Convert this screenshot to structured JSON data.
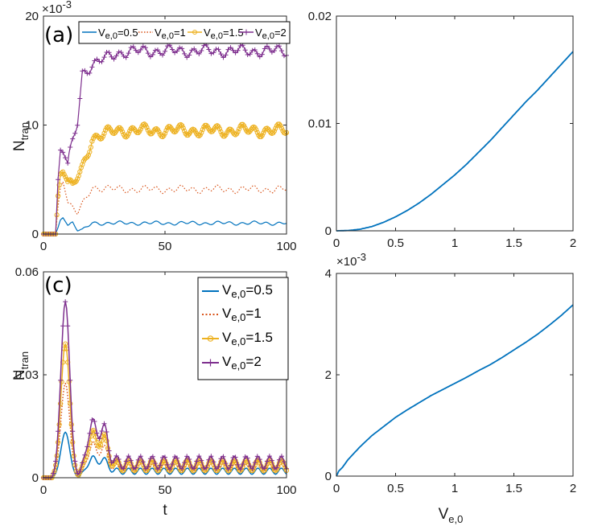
{
  "figure": {
    "ylabel_main": "N",
    "ylabel_sub": "tran",
    "xlabel_t": "t",
    "xlabel_v_main": "V",
    "xlabel_v_sub": "e,0",
    "exponent_label": "×10",
    "exponent_power": "-3"
  },
  "legend": [
    {
      "prefix": "V",
      "sub": "e,0",
      "suffix": "=0.5",
      "color": "#0072BD",
      "style": "solid"
    },
    {
      "prefix": "V",
      "sub": "e,0",
      "suffix": "=1",
      "color": "#D95319",
      "style": "dotted"
    },
    {
      "prefix": "V",
      "sub": "e,0",
      "suffix": "=1.5",
      "color": "#EDB120",
      "style": "circle"
    },
    {
      "prefix": "V",
      "sub": "e,0",
      "suffix": "=2",
      "color": "#7E2F8E",
      "style": "plus"
    }
  ],
  "chart_data": [
    {
      "id": "a",
      "panel_label": "(a)",
      "type": "line",
      "xlim": [
        0,
        100
      ],
      "ylim": [
        0,
        20
      ],
      "xticks": [
        0,
        50,
        100
      ],
      "yticks": [
        0,
        10,
        20
      ],
      "xtick_labels": [
        "0",
        "50",
        "100"
      ],
      "ytick_labels": [
        "0",
        "10",
        "20"
      ],
      "y_scale_exponent": "×10^-3",
      "xlabel": "",
      "ylabel": "N_tran",
      "series": [
        {
          "name": "V_e,0=0.5",
          "x": [
            0,
            5,
            6,
            7,
            8,
            10,
            12,
            14,
            16,
            20,
            30,
            40,
            50,
            60,
            70,
            80,
            90,
            100
          ],
          "values": [
            0,
            0,
            0.6,
            1.3,
            1.5,
            0.8,
            1.1,
            0.4,
            0.3,
            1.0,
            1.0,
            1.0,
            1.0,
            1.0,
            1.0,
            1.0,
            1.0,
            1.0
          ],
          "amp": 0.2
        },
        {
          "name": "V_e,0=1",
          "x": [
            0,
            5,
            6,
            7,
            8,
            10,
            12,
            14,
            16,
            20,
            30,
            40,
            50,
            60,
            70,
            80,
            90,
            100
          ],
          "values": [
            0,
            0,
            2.5,
            4.3,
            4.8,
            2.9,
            2.4,
            1.9,
            2.6,
            4.3,
            4.1,
            4.1,
            4.1,
            4.1,
            4.1,
            4.1,
            4.1,
            4.1
          ],
          "amp": 0.4
        },
        {
          "name": "V_e,0=1.5",
          "x": [
            0,
            5,
            6,
            7,
            8,
            10,
            12,
            14,
            16,
            20,
            30,
            40,
            50,
            60,
            70,
            80,
            90,
            100
          ],
          "values": [
            0,
            0,
            3.5,
            5.5,
            5.7,
            4.8,
            4.2,
            5.2,
            6.0,
            8.8,
            9.5,
            9.5,
            9.5,
            9.5,
            9.5,
            9.5,
            9.5,
            9.5
          ],
          "amp": 0.6
        },
        {
          "name": "V_e,0=2",
          "x": [
            0,
            5,
            6,
            7,
            8,
            10,
            12,
            14,
            16,
            20,
            30,
            40,
            50,
            60,
            70,
            80,
            90,
            100
          ],
          "values": [
            0,
            0,
            5.0,
            7.7,
            7.5,
            6.5,
            8.3,
            10.3,
            14.8,
            15.5,
            16.6,
            16.8,
            16.8,
            16.8,
            16.8,
            16.8,
            16.8,
            16.8
          ],
          "amp": 0.6
        }
      ]
    },
    {
      "id": "b",
      "panel_label": "",
      "type": "line",
      "xlim": [
        0,
        2
      ],
      "ylim": [
        0,
        0.02
      ],
      "xticks": [
        0,
        0.5,
        1,
        1.5,
        2
      ],
      "yticks": [
        0,
        0.01,
        0.02
      ],
      "xtick_labels": [
        "0",
        "0.5",
        "1",
        "1.5",
        "2"
      ],
      "ytick_labels": [
        "0",
        "0.01",
        "0.02"
      ],
      "xlabel": "",
      "ylabel": "",
      "series": [
        {
          "name": "",
          "x": [
            0,
            0.1,
            0.2,
            0.3,
            0.4,
            0.5,
            0.6,
            0.7,
            0.8,
            0.9,
            1.0,
            1.1,
            1.2,
            1.3,
            1.4,
            1.5,
            1.6,
            1.7,
            1.8,
            1.9,
            2.0
          ],
          "values": [
            0,
            3e-05,
            0.00015,
            0.0004,
            0.0008,
            0.0013,
            0.0019,
            0.0026,
            0.0034,
            0.0043,
            0.0052,
            0.0062,
            0.0073,
            0.0084,
            0.0096,
            0.0108,
            0.012,
            0.0131,
            0.0143,
            0.0155,
            0.0167
          ]
        }
      ]
    },
    {
      "id": "c",
      "panel_label": "(c)",
      "type": "line",
      "xlim": [
        0,
        100
      ],
      "ylim": [
        0,
        0.06
      ],
      "xticks": [
        0,
        50,
        100
      ],
      "yticks": [
        0,
        0.03,
        0.06
      ],
      "xtick_labels": [
        "0",
        "50",
        "100"
      ],
      "ytick_labels": [
        "0",
        "0.03",
        "0.06"
      ],
      "xlabel": "t",
      "ylabel": "N_tran",
      "series": [
        {
          "name": "V_e,0=0.5",
          "peak": 0.0133,
          "second": 0.0036,
          "base": 0.0019,
          "amp": 0.0009
        },
        {
          "name": "V_e,0=1",
          "peak": 0.0275,
          "second": 0.0064,
          "base": 0.0027,
          "amp": 0.0013
        },
        {
          "name": "V_e,0=1.5",
          "peak": 0.039,
          "second": 0.0086,
          "base": 0.0036,
          "amp": 0.0016
        },
        {
          "name": "V_e,0=2",
          "peak": 0.0513,
          "second": 0.0109,
          "base": 0.0044,
          "amp": 0.0019
        }
      ]
    },
    {
      "id": "d",
      "panel_label": "",
      "type": "line",
      "xlim": [
        0,
        2
      ],
      "ylim": [
        0,
        4
      ],
      "xticks": [
        0,
        0.5,
        1,
        1.5,
        2
      ],
      "yticks": [
        0,
        2,
        4
      ],
      "xtick_labels": [
        "0",
        "0.5",
        "1",
        "1.5",
        "2"
      ],
      "ytick_labels": [
        "0",
        "2",
        "4"
      ],
      "y_scale_exponent": "×10^-3",
      "xlabel": "V_e,0",
      "ylabel": "",
      "series": [
        {
          "name": "",
          "x": [
            0,
            0.02,
            0.05,
            0.1,
            0.2,
            0.3,
            0.4,
            0.5,
            0.6,
            0.7,
            0.8,
            0.9,
            1.0,
            1.1,
            1.2,
            1.3,
            1.4,
            1.5,
            1.6,
            1.7,
            1.8,
            1.9,
            2.0
          ],
          "values": [
            0,
            0.1,
            0.17,
            0.33,
            0.58,
            0.8,
            0.98,
            1.16,
            1.31,
            1.45,
            1.59,
            1.71,
            1.83,
            1.95,
            2.08,
            2.2,
            2.34,
            2.49,
            2.64,
            2.8,
            2.98,
            3.17,
            3.38
          ]
        }
      ]
    }
  ]
}
